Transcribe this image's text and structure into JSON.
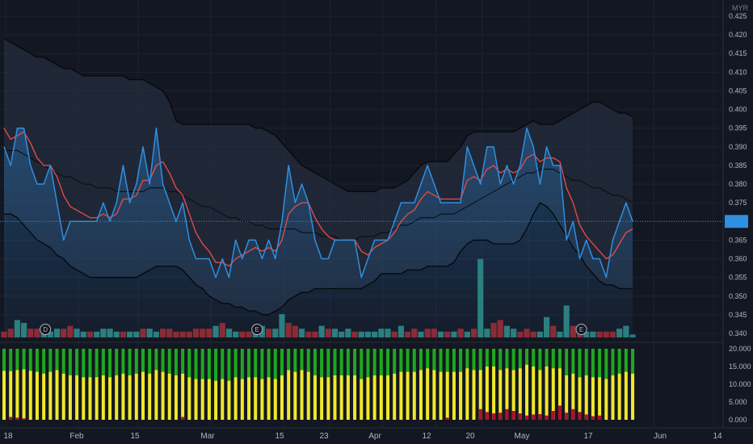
{
  "app": {
    "currency": "MYR",
    "last_price_label": ""
  },
  "colors": {
    "background": "#131722",
    "price_line": "#2f8fe0",
    "ma_line": "#e04b4b",
    "bb_band": "#0b0d12",
    "bb_fill": "#3a4a5e",
    "vol_up": "#2a7f7f",
    "vol_down": "#8a2c37",
    "osc_green": "#1ea81e",
    "osc_yellow": "#f0e82a",
    "osc_red": "#b0102a",
    "grid": "#1e2230"
  },
  "chart_data": [
    {
      "type": "line",
      "title": "",
      "y_axis_ticks": [
        "0.425",
        "0.420",
        "0.415",
        "0.410",
        "0.405",
        "0.400",
        "0.395",
        "0.390",
        "0.385",
        "0.380",
        "0.375",
        "0.370",
        "0.365",
        "0.360",
        "0.355",
        "0.350",
        "0.345",
        "0.340"
      ],
      "ylim": [
        0.338,
        0.426
      ],
      "x_axis_labels": [
        "18",
        "Feb",
        "15",
        "Mar",
        "15",
        "23",
        "Apr",
        "12",
        "20",
        "May",
        "17",
        "Jun",
        "14"
      ],
      "grid": true,
      "series": [
        {
          "role": "price",
          "values": [
            0.39,
            0.385,
            0.395,
            0.395,
            0.385,
            0.38,
            0.38,
            0.385,
            0.375,
            0.365,
            0.37,
            0.37,
            0.37,
            0.37,
            0.37,
            0.375,
            0.37,
            0.375,
            0.385,
            0.375,
            0.38,
            0.39,
            0.38,
            0.395,
            0.38,
            0.375,
            0.37,
            0.375,
            0.365,
            0.36,
            0.36,
            0.36,
            0.355,
            0.36,
            0.355,
            0.365,
            0.36,
            0.365,
            0.365,
            0.36,
            0.365,
            0.36,
            0.37,
            0.385,
            0.375,
            0.38,
            0.375,
            0.365,
            0.36,
            0.36,
            0.365,
            0.365,
            0.365,
            0.365,
            0.355,
            0.36,
            0.365,
            0.365,
            0.365,
            0.37,
            0.375,
            0.375,
            0.375,
            0.38,
            0.385,
            0.38,
            0.375,
            0.375,
            0.375,
            0.375,
            0.39,
            0.385,
            0.38,
            0.39,
            0.39,
            0.38,
            0.385,
            0.38,
            0.385,
            0.395,
            0.39,
            0.38,
            0.39,
            0.385,
            0.385,
            0.365,
            0.37,
            0.36,
            0.365,
            0.36,
            0.36,
            0.355,
            0.365,
            0.37,
            0.375,
            0.37
          ]
        },
        {
          "role": "moving-average",
          "values": [
            0.395,
            0.392,
            0.393,
            0.394,
            0.391,
            0.387,
            0.385,
            0.385,
            0.382,
            0.377,
            0.374,
            0.373,
            0.372,
            0.371,
            0.371,
            0.372,
            0.371,
            0.372,
            0.376,
            0.376,
            0.377,
            0.381,
            0.381,
            0.385,
            0.386,
            0.383,
            0.379,
            0.377,
            0.372,
            0.367,
            0.364,
            0.362,
            0.359,
            0.359,
            0.358,
            0.36,
            0.361,
            0.362,
            0.363,
            0.362,
            0.363,
            0.362,
            0.365,
            0.372,
            0.374,
            0.375,
            0.375,
            0.371,
            0.368,
            0.366,
            0.365,
            0.365,
            0.365,
            0.365,
            0.362,
            0.361,
            0.363,
            0.364,
            0.365,
            0.367,
            0.37,
            0.372,
            0.373,
            0.376,
            0.378,
            0.377,
            0.376,
            0.376,
            0.376,
            0.376,
            0.381,
            0.382,
            0.381,
            0.384,
            0.385,
            0.383,
            0.384,
            0.383,
            0.384,
            0.387,
            0.388,
            0.386,
            0.387,
            0.387,
            0.386,
            0.379,
            0.375,
            0.369,
            0.366,
            0.364,
            0.362,
            0.36,
            0.361,
            0.364,
            0.367,
            0.368
          ]
        },
        {
          "role": "bollinger-mid",
          "values": [
            0.389,
            0.389,
            0.389,
            0.388,
            0.387,
            0.386,
            0.385,
            0.384,
            0.383,
            0.382,
            0.382,
            0.381,
            0.38,
            0.38,
            0.379,
            0.379,
            0.379,
            0.378,
            0.378,
            0.378,
            0.378,
            0.378,
            0.379,
            0.379,
            0.379,
            0.378,
            0.378,
            0.377,
            0.376,
            0.375,
            0.374,
            0.374,
            0.373,
            0.372,
            0.371,
            0.371,
            0.37,
            0.37,
            0.369,
            0.369,
            0.368,
            0.368,
            0.368,
            0.368,
            0.368,
            0.367,
            0.367,
            0.367,
            0.366,
            0.366,
            0.366,
            0.365,
            0.365,
            0.365,
            0.366,
            0.366,
            0.366,
            0.367,
            0.367,
            0.368,
            0.369,
            0.369,
            0.37,
            0.371,
            0.371,
            0.371,
            0.372,
            0.372,
            0.372,
            0.373,
            0.374,
            0.375,
            0.376,
            0.377,
            0.378,
            0.379,
            0.38,
            0.381,
            0.382,
            0.383,
            0.383,
            0.384,
            0.384,
            0.384,
            0.383,
            0.382,
            0.381,
            0.381,
            0.38,
            0.379,
            0.379,
            0.378,
            0.377,
            0.377,
            0.376,
            0.375
          ]
        },
        {
          "role": "bollinger-upper",
          "values": [
            0.419,
            0.418,
            0.417,
            0.416,
            0.415,
            0.414,
            0.414,
            0.413,
            0.412,
            0.411,
            0.411,
            0.41,
            0.409,
            0.409,
            0.409,
            0.409,
            0.409,
            0.409,
            0.409,
            0.408,
            0.408,
            0.408,
            0.407,
            0.406,
            0.405,
            0.402,
            0.397,
            0.396,
            0.396,
            0.396,
            0.396,
            0.396,
            0.396,
            0.396,
            0.396,
            0.396,
            0.396,
            0.396,
            0.395,
            0.395,
            0.394,
            0.393,
            0.391,
            0.389,
            0.387,
            0.385,
            0.384,
            0.383,
            0.382,
            0.381,
            0.38,
            0.379,
            0.378,
            0.378,
            0.378,
            0.378,
            0.378,
            0.379,
            0.379,
            0.379,
            0.38,
            0.381,
            0.383,
            0.385,
            0.386,
            0.386,
            0.386,
            0.386,
            0.388,
            0.39,
            0.393,
            0.394,
            0.394,
            0.394,
            0.394,
            0.394,
            0.394,
            0.394,
            0.395,
            0.396,
            0.397,
            0.396,
            0.396,
            0.396,
            0.397,
            0.398,
            0.399,
            0.4,
            0.401,
            0.402,
            0.402,
            0.401,
            0.4,
            0.399,
            0.399,
            0.398
          ]
        },
        {
          "role": "bollinger-lower",
          "values": [
            0.372,
            0.372,
            0.371,
            0.369,
            0.367,
            0.365,
            0.364,
            0.363,
            0.361,
            0.36,
            0.358,
            0.357,
            0.356,
            0.355,
            0.355,
            0.355,
            0.355,
            0.355,
            0.355,
            0.355,
            0.355,
            0.356,
            0.357,
            0.358,
            0.358,
            0.358,
            0.358,
            0.357,
            0.355,
            0.353,
            0.352,
            0.35,
            0.349,
            0.348,
            0.348,
            0.347,
            0.347,
            0.346,
            0.346,
            0.345,
            0.345,
            0.346,
            0.347,
            0.349,
            0.35,
            0.351,
            0.351,
            0.352,
            0.352,
            0.352,
            0.352,
            0.352,
            0.352,
            0.352,
            0.352,
            0.353,
            0.354,
            0.356,
            0.356,
            0.356,
            0.356,
            0.357,
            0.357,
            0.357,
            0.358,
            0.358,
            0.358,
            0.358,
            0.359,
            0.362,
            0.364,
            0.365,
            0.365,
            0.365,
            0.364,
            0.364,
            0.364,
            0.364,
            0.365,
            0.368,
            0.372,
            0.375,
            0.374,
            0.372,
            0.369,
            0.366,
            0.363,
            0.361,
            0.358,
            0.356,
            0.354,
            0.353,
            0.353,
            0.352,
            0.352,
            0.352
          ]
        }
      ],
      "current_price": 0.37
    },
    {
      "type": "bar",
      "role": "volume",
      "values": [
        2,
        3,
        6,
        5,
        3,
        3,
        2,
        2,
        3,
        3,
        4,
        3,
        2,
        2,
        2,
        3,
        3,
        2,
        2,
        2,
        2,
        3,
        3,
        2,
        3,
        3,
        2,
        2,
        2,
        3,
        3,
        3,
        4,
        5,
        3,
        2,
        2,
        2,
        2,
        4,
        3,
        3,
        8,
        5,
        4,
        3,
        2,
        2,
        4,
        3,
        3,
        2,
        3,
        2,
        2,
        2,
        2,
        3,
        3,
        2,
        4,
        2,
        3,
        2,
        3,
        3,
        2,
        2,
        2,
        3,
        2,
        3,
        27,
        3,
        5,
        6,
        4,
        3,
        2,
        3,
        2,
        2,
        7,
        4,
        2,
        11,
        4,
        3,
        2,
        2,
        2,
        2,
        2,
        3,
        4,
        1
      ],
      "direction": [
        "d",
        "d",
        "u",
        "u",
        "d",
        "d",
        "u",
        "u",
        "u",
        "d",
        "d",
        "u",
        "u",
        "d",
        "u",
        "u",
        "u",
        "u",
        "d",
        "u",
        "u",
        "d",
        "u",
        "u",
        "d",
        "d",
        "d",
        "d",
        "d",
        "d",
        "d",
        "d",
        "u",
        "d",
        "u",
        "u",
        "d",
        "d",
        "u",
        "u",
        "d",
        "u",
        "u",
        "d",
        "d",
        "u",
        "d",
        "d",
        "u",
        "d",
        "u",
        "u",
        "u",
        "d",
        "u",
        "u",
        "u",
        "u",
        "u",
        "d",
        "u",
        "d",
        "d",
        "u",
        "d",
        "d",
        "u",
        "d",
        "u",
        "d",
        "u",
        "d",
        "u",
        "u",
        "d",
        "d",
        "u",
        "u",
        "d",
        "d",
        "d",
        "u",
        "u",
        "d",
        "u",
        "u",
        "d",
        "d",
        "u",
        "u",
        "d",
        "d",
        "d",
        "u",
        "u",
        "u"
      ],
      "markers": [
        {
          "label": "D",
          "index": 6
        },
        {
          "label": "E",
          "index": 38
        },
        {
          "label": "E",
          "index": 87
        }
      ]
    },
    {
      "type": "bar",
      "role": "oscillator",
      "ylim": [
        -500,
        20700
      ],
      "y_axis_ticks": [
        "20.000",
        "15.000",
        "10.000",
        "5.000",
        "0.000"
      ],
      "series": [
        {
          "name": "green",
          "values": [
            20000,
            20000,
            20000,
            20000,
            20000,
            20000,
            20000,
            20000,
            20000,
            20000,
            20000,
            20000,
            20000,
            20000,
            20000,
            20000,
            20000,
            20000,
            20000,
            20000,
            20000,
            20000,
            20000,
            20000,
            20000,
            20000,
            20000,
            20000,
            20000,
            20000,
            20000,
            20000,
            20000,
            20000,
            20000,
            20000,
            20000,
            20000,
            20000,
            20000,
            20000,
            20000,
            20000,
            20000,
            20000,
            20000,
            20000,
            20000,
            20000,
            20000,
            20000,
            20000,
            20000,
            20000,
            20000,
            20000,
            20000,
            20000,
            20000,
            20000,
            20000,
            20000,
            20000,
            20000,
            20000,
            20000,
            20000,
            20000,
            20000,
            20000,
            20000,
            20000,
            20000,
            20000,
            20000,
            20000,
            20000,
            20000,
            20000,
            20000,
            20000,
            20000,
            20000,
            20000,
            20000,
            20000,
            20000,
            20000,
            20000,
            20000,
            20000,
            20000,
            20000,
            20000,
            20000,
            20000
          ]
        },
        {
          "name": "yellow",
          "values": [
            13800,
            13700,
            14000,
            14200,
            13800,
            13500,
            13000,
            13500,
            14000,
            13000,
            12500,
            12500,
            12000,
            12000,
            12000,
            12500,
            12000,
            12500,
            13000,
            12500,
            13000,
            13500,
            13000,
            14000,
            13500,
            13000,
            12500,
            13000,
            12000,
            11500,
            11500,
            11500,
            11000,
            11500,
            11000,
            12000,
            11500,
            12000,
            12000,
            11500,
            12000,
            11500,
            12500,
            14000,
            13500,
            14000,
            13500,
            12500,
            12000,
            12000,
            12500,
            12500,
            12500,
            12500,
            11500,
            12000,
            12500,
            12500,
            12500,
            13000,
            13500,
            13500,
            13500,
            14000,
            14500,
            14000,
            13500,
            13500,
            13500,
            13500,
            14500,
            14000,
            14000,
            15000,
            15000,
            14000,
            14500,
            14000,
            14500,
            15500,
            15000,
            14000,
            15000,
            14500,
            14500,
            12500,
            13000,
            12000,
            12500,
            12000,
            12000,
            11500,
            12500,
            13000,
            13500,
            13000
          ]
        },
        {
          "name": "red",
          "values": [
            0,
            800,
            600,
            400,
            0,
            0,
            0,
            0,
            0,
            0,
            0,
            0,
            0,
            0,
            0,
            0,
            0,
            0,
            0,
            0,
            0,
            0,
            0,
            0,
            0,
            0,
            0,
            800,
            0,
            0,
            0,
            0,
            0,
            0,
            0,
            0,
            0,
            0,
            0,
            0,
            0,
            0,
            0,
            0,
            0,
            0,
            0,
            0,
            0,
            0,
            0,
            0,
            0,
            0,
            0,
            0,
            0,
            0,
            0,
            0,
            0,
            0,
            0,
            0,
            0,
            0,
            0,
            600,
            0,
            0,
            0,
            0,
            3000,
            2200,
            1800,
            2000,
            3000,
            2500,
            1800,
            1200,
            1500,
            1600,
            1200,
            2500,
            4000,
            2000,
            3000,
            2200,
            1500,
            1000,
            1200,
            0,
            0,
            0,
            0,
            0
          ]
        }
      ]
    }
  ]
}
